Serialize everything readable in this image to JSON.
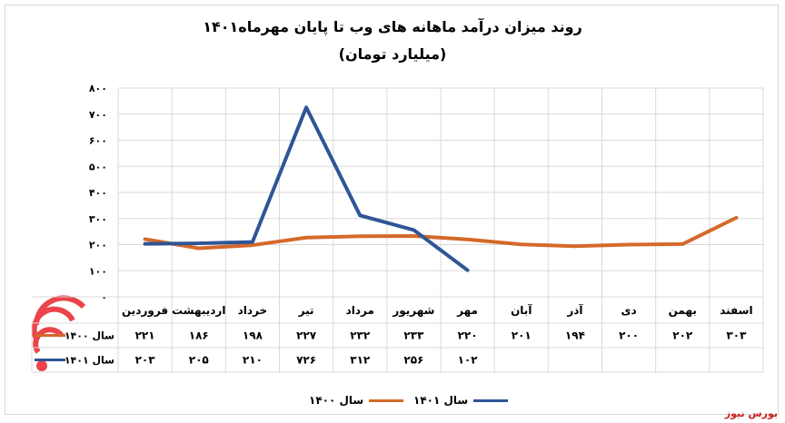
{
  "title": "روند میزان درآمد ماهانه های وب تا پایان مهرماه۱۴۰۱",
  "subtitle": "(میلیارد تومان)",
  "brand": "بورس نیوز",
  "colors": {
    "series_1400": "#d4692a",
    "series_1401": "#2f5597",
    "grid": "#d9d9d9",
    "watermark": "#e8242b"
  },
  "icons": {
    "watermark": "bourse-news-logo-watermark"
  },
  "chart_data": {
    "type": "line",
    "categories": [
      "اسفند",
      "بهمن",
      "دی",
      "آذر",
      "آبان",
      "مهر",
      "شهریور",
      "مرداد",
      "تیر",
      "خرداد",
      "اردیبهشت",
      "فروردین"
    ],
    "series": [
      {
        "name": "سال ۱۴۰۰",
        "values": [
          303,
          202,
          200,
          194,
          201,
          220,
          233,
          232,
          227,
          198,
          186,
          221
        ],
        "labels": [
          "۳۰۳",
          "۲۰۲",
          "۲۰۰",
          "۱۹۴",
          "۲۰۱",
          "۲۲۰",
          "۲۳۳",
          "۲۳۲",
          "۲۲۷",
          "۱۹۸",
          "۱۸۶",
          "۲۲۱"
        ]
      },
      {
        "name": "سال ۱۴۰۱",
        "values": [
          null,
          null,
          null,
          null,
          null,
          102,
          256,
          312,
          726,
          210,
          205,
          203
        ],
        "labels": [
          "",
          "",
          "",
          "",
          "",
          "۱۰۲",
          "۲۵۶",
          "۳۱۲",
          "۷۲۶",
          "۲۱۰",
          "۲۰۵",
          "۲۰۳"
        ]
      }
    ],
    "ylim": [
      0,
      800
    ],
    "yticks": [
      0,
      100,
      200,
      300,
      400,
      500,
      600,
      700,
      800
    ],
    "ytick_labels": [
      "۰",
      "۱۰۰",
      "۲۰۰",
      "۳۰۰",
      "۴۰۰",
      "۵۰۰",
      "۶۰۰",
      "۷۰۰",
      "۸۰۰"
    ],
    "grid": true,
    "legend_position": "bottom",
    "data_table": true
  }
}
